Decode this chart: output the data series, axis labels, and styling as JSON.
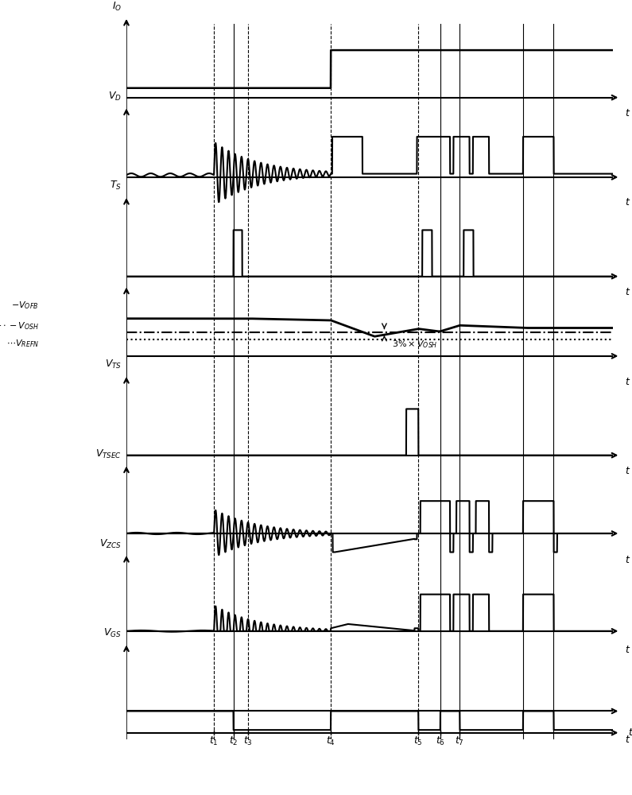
{
  "fig_width": 7.95,
  "fig_height": 10.0,
  "dpi": 100,
  "background": "#ffffff",
  "text_color": "#000000",
  "t1": 0.18,
  "t2": 0.22,
  "t3": 0.25,
  "t4": 0.42,
  "t5": 0.6,
  "t6": 0.645,
  "t7": 0.685,
  "panel_labels": [
    "$I_O$",
    "$V_D$",
    "$T_S$",
    "$V_{OFB}$",
    "$V_{TS}$",
    "$V_{TSEC}$",
    "$V_{ZCS}$",
    "$V_{GS}$"
  ],
  "time_labels": [
    "$t_1$",
    "$t_2$",
    "$t_3$",
    "$t_4$",
    "$t_5$",
    "$t_6$",
    "$t_7$"
  ]
}
